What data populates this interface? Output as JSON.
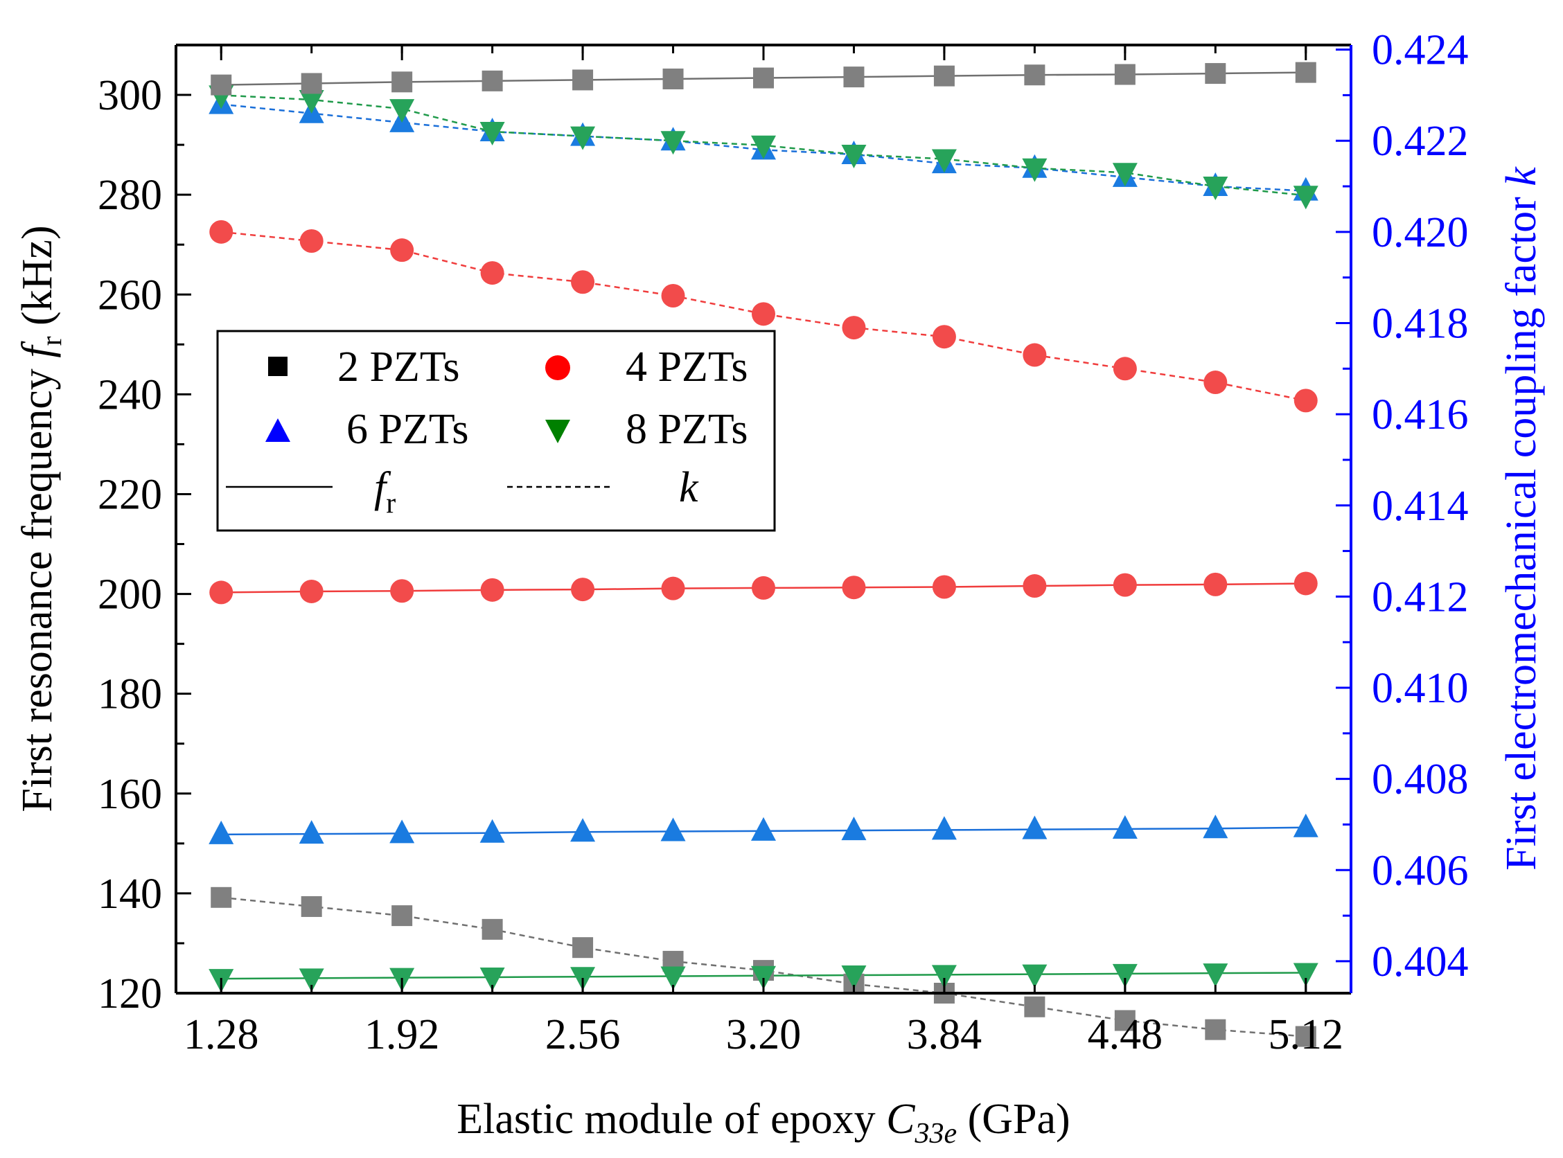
{
  "chart_data": {
    "type": "line",
    "title": "",
    "xlabel": {
      "main": "Elastic module of epoxy ",
      "var": "C",
      "sub": "33e",
      "unit": " (GPa)"
    },
    "ylabel_left": {
      "main": "First resonance frequency ",
      "var": "f",
      "sub": "r",
      "unit": " (kHz)"
    },
    "ylabel_right": {
      "main": "First electromechanical coupling factor ",
      "var": "k"
    },
    "xlim": [
      1.12,
      5.28
    ],
    "ylim_left": [
      120,
      310
    ],
    "ylim_right": [
      0.4033,
      0.4241
    ],
    "x": [
      1.28,
      1.6,
      1.92,
      2.24,
      2.56,
      2.88,
      3.2,
      3.52,
      3.84,
      4.16,
      4.48,
      4.8,
      5.12
    ],
    "x_ticks": [
      1.28,
      1.92,
      2.56,
      3.2,
      3.84,
      4.48,
      5.12
    ],
    "x_tick_labels": [
      "1.28",
      "1.92",
      "2.56",
      "3.20",
      "3.84",
      "4.48",
      "5.12"
    ],
    "y_left_ticks": [
      120,
      140,
      160,
      180,
      200,
      220,
      240,
      260,
      280,
      300
    ],
    "y_left_tick_labels": [
      "120",
      "140",
      "160",
      "180",
      "200",
      "220",
      "240",
      "260",
      "280",
      "300"
    ],
    "y_right_ticks": [
      0.404,
      0.406,
      0.408,
      0.41,
      0.412,
      0.414,
      0.416,
      0.418,
      0.42,
      0.422,
      0.424
    ],
    "y_right_tick_labels": [
      "0.404",
      "0.406",
      "0.408",
      "0.410",
      "0.412",
      "0.414",
      "0.416",
      "0.418",
      "0.420",
      "0.422",
      "0.424"
    ],
    "series": [
      {
        "name": "2 PZTs",
        "marker": "square",
        "fill": "#808080",
        "line_color": "#707070",
        "fr": [
          302.0,
          302.3,
          302.6,
          302.8,
          303.0,
          303.2,
          303.4,
          303.6,
          303.8,
          304.0,
          304.1,
          304.3,
          304.5
        ],
        "k": [
          0.4054,
          0.4052,
          0.405,
          0.4047,
          0.4043,
          0.404,
          0.4038,
          0.4035,
          0.4033,
          0.403,
          0.4027,
          0.4025,
          0.40235
        ]
      },
      {
        "name": "4 PZTs",
        "marker": "circle",
        "fill": "#f24b4b",
        "line_color": "#f03c3c",
        "fr": [
          200.3,
          200.5,
          200.6,
          200.8,
          200.9,
          201.1,
          201.2,
          201.3,
          201.4,
          201.6,
          201.8,
          201.9,
          202.1
        ],
        "k": [
          0.42,
          0.4198,
          0.4196,
          0.4191,
          0.4189,
          0.4186,
          0.4182,
          0.4179,
          0.4177,
          0.4173,
          0.417,
          0.4167,
          0.4163
        ]
      },
      {
        "name": "6 PZTs",
        "marker": "triangle-up",
        "fill": "#1a7be0",
        "line_color": "#1a6fd9",
        "fr": [
          151.8,
          151.9,
          152.0,
          152.1,
          152.3,
          152.4,
          152.5,
          152.6,
          152.7,
          152.8,
          152.9,
          153.0,
          153.2
        ],
        "k": [
          0.4228,
          0.4226,
          0.4224,
          0.4222,
          0.4221,
          0.422,
          0.4218,
          0.4217,
          0.4215,
          0.4214,
          0.4212,
          0.421,
          0.4209
        ]
      },
      {
        "name": "8 PZTs",
        "marker": "triangle-down",
        "fill": "#27a35a",
        "line_color": "#1f9a4a",
        "fr": [
          122.9,
          123.0,
          123.1,
          123.2,
          123.3,
          123.4,
          123.5,
          123.6,
          123.7,
          123.8,
          123.9,
          124.0,
          124.1
        ],
        "k": [
          0.423,
          0.4229,
          0.4227,
          0.4222,
          0.4221,
          0.422,
          0.4219,
          0.4217,
          0.4216,
          0.4214,
          0.4213,
          0.421,
          0.4208
        ]
      }
    ],
    "legend": {
      "position": "center-left",
      "entries": [
        {
          "label": "2 PZTs",
          "marker": "square",
          "color": "#000000"
        },
        {
          "label": "4 PZTs",
          "marker": "circle",
          "color": "#ff0000"
        },
        {
          "label": "6 PZTs",
          "marker": "triangle-up",
          "color": "#0000ff"
        },
        {
          "label": "8 PZTs",
          "marker": "triangle-down",
          "color": "#008000"
        }
      ],
      "line_entries": [
        {
          "style": "solid",
          "var": "f",
          "sub": "r"
        },
        {
          "style": "dashed",
          "var": "k",
          "sub": ""
        }
      ]
    },
    "colors": {
      "axis": "#000000",
      "right_axis": "#0000ff"
    }
  }
}
